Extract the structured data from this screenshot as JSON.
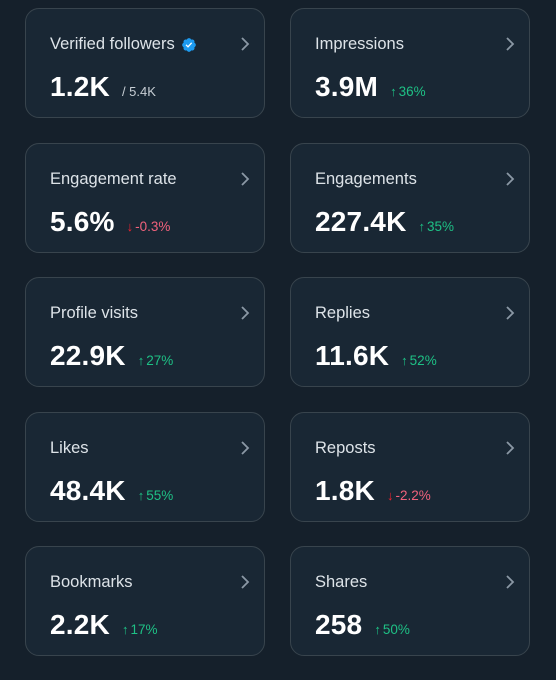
{
  "colors": {
    "background": "#15202b",
    "card": "#192734",
    "border": "#38444d",
    "up": "#1ec085",
    "down": "#f0627c",
    "verified": "#1d9bf0"
  },
  "cards": [
    {
      "label": "Verified followers",
      "value": "1.2K",
      "sub": "/ 5.4K",
      "icon": "verified-badge-icon"
    },
    {
      "label": "Impressions",
      "value": "3.9M",
      "change": "36%",
      "direction": "up"
    },
    {
      "label": "Engagement rate",
      "value": "5.6%",
      "change": "-0.3%",
      "direction": "down"
    },
    {
      "label": "Engagements",
      "value": "227.4K",
      "change": "35%",
      "direction": "up"
    },
    {
      "label": "Profile visits",
      "value": "22.9K",
      "change": "27%",
      "direction": "up"
    },
    {
      "label": "Replies",
      "value": "11.6K",
      "change": "52%",
      "direction": "up"
    },
    {
      "label": "Likes",
      "value": "48.4K",
      "change": "55%",
      "direction": "up"
    },
    {
      "label": "Reposts",
      "value": "1.8K",
      "change": "-2.2%",
      "direction": "down"
    },
    {
      "label": "Bookmarks",
      "value": "2.2K",
      "change": "17%",
      "direction": "up"
    },
    {
      "label": "Shares",
      "value": "258",
      "change": "50%",
      "direction": "up"
    }
  ],
  "arrows": {
    "up": "↑",
    "down": "↓"
  }
}
